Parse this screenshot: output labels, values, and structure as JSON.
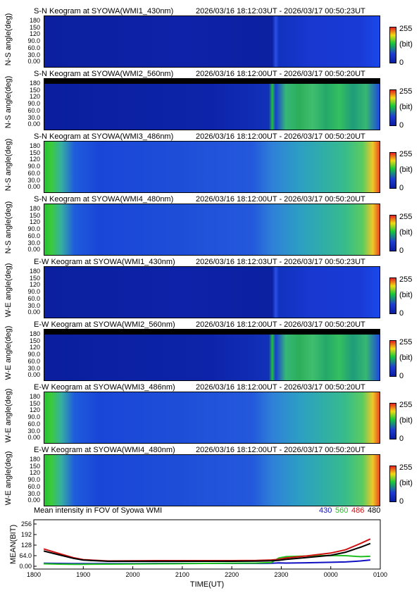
{
  "keograms": [
    {
      "title": "S-N Keogram at SYOWA(WMI1_430nm)",
      "time_range": "2026/03/16 18:12:03UT - 2026/03/17 00:50:23UT",
      "ylabel": "N-S angle(deg)",
      "style": "dark430"
    },
    {
      "title": "S-N Keogram at SYOWA(WMI2_560nm)",
      "time_range": "2026/03/16 18:12:00UT - 2026/03/17 00:50:20UT",
      "ylabel": "N-S angle(deg)",
      "style": "green560"
    },
    {
      "title": "S-N Keogram at SYOWA(WMI3_486nm)",
      "time_range": "2026/03/16 18:12:00UT - 2026/03/17 00:50:20UT",
      "ylabel": "N-S angle(deg)",
      "style": "bright"
    },
    {
      "title": "S-N Keogram at SYOWA(WMI4_480nm)",
      "time_range": "2026/03/16 18:12:00UT - 2026/03/17 00:50:20UT",
      "ylabel": "N-S angle(deg)",
      "style": "bright"
    },
    {
      "title": "E-W Keogram at SYOWA(WMI1_430nm)",
      "time_range": "2026/03/16 18:12:03UT - 2026/03/17 00:50:23UT",
      "ylabel": "W-E angle(deg)",
      "style": "dark430"
    },
    {
      "title": "E-W Keogram at SYOWA(WMI2_560nm)",
      "time_range": "2026/03/16 18:12:00UT - 2026/03/17 00:50:20UT",
      "ylabel": "W-E angle(deg)",
      "style": "green560"
    },
    {
      "title": "E-W Keogram at SYOWA(WMI3_486nm)",
      "time_range": "2026/03/16 18:12:00UT - 2026/03/17 00:50:20UT",
      "ylabel": "W-E angle(deg)",
      "style": "bright"
    },
    {
      "title": "E-W Keogram at SYOWA(WMI4_480nm)",
      "time_range": "2026/03/16 18:12:00UT - 2026/03/17 00:50:20UT",
      "ylabel": "W-E angle(deg)",
      "style": "bright"
    }
  ],
  "angle_ticks": [
    "180",
    "150",
    "120",
    "90.0",
    "60.0",
    "30.0",
    "0.00"
  ],
  "colorbar": {
    "max": "255",
    "unit": "(bit)",
    "min": "0"
  },
  "colors": {
    "navy": "#0a1e9e",
    "blue": "#1e3cd2",
    "green": "#19c83c",
    "yellow": "#f0dc14",
    "red": "#e61e1e"
  },
  "chart_data": {
    "type": "line",
    "title": "Mean intensity in FOV of Syowa WMI",
    "xlabel": "TIME(UT)",
    "ylabel": "MEAN(BIT)",
    "x_ticks": [
      "1800",
      "1900",
      "2000",
      "2100",
      "2200",
      "2300",
      "0000",
      "0100"
    ],
    "y_ticks": [
      "256",
      "192",
      "128",
      "64.0",
      "0.00"
    ],
    "ylim": [
      0,
      256
    ],
    "xlim_hours": [
      18.0,
      25.0
    ],
    "x_hours": [
      18.2,
      18.5,
      18.8,
      19.0,
      19.5,
      20.0,
      20.5,
      21.0,
      21.5,
      22.0,
      22.5,
      22.8,
      22.95,
      23.1,
      23.5,
      24.0,
      24.3,
      24.6,
      24.8
    ],
    "series": [
      {
        "name": "430",
        "color": "#1010c0",
        "values": [
          18,
          17,
          16,
          16,
          16,
          16,
          17,
          17,
          17,
          17,
          17,
          18,
          20,
          19,
          21,
          24,
          26,
          32,
          38
        ]
      },
      {
        "name": "560",
        "color": "#20c020",
        "values": [
          15,
          13,
          12,
          12,
          13,
          14,
          15,
          16,
          17,
          18,
          19,
          22,
          50,
          58,
          62,
          65,
          64,
          58,
          60
        ]
      },
      {
        "name": "486",
        "color": "#d01010",
        "values": [
          105,
          78,
          52,
          40,
          32,
          33,
          34,
          34,
          34,
          34,
          35,
          38,
          42,
          50,
          62,
          80,
          100,
          138,
          165
        ]
      },
      {
        "name": "480",
        "color": "#000000",
        "values": [
          92,
          70,
          48,
          37,
          30,
          30,
          30,
          30,
          30,
          30,
          31,
          33,
          36,
          42,
          52,
          66,
          85,
          115,
          138
        ]
      }
    ]
  }
}
